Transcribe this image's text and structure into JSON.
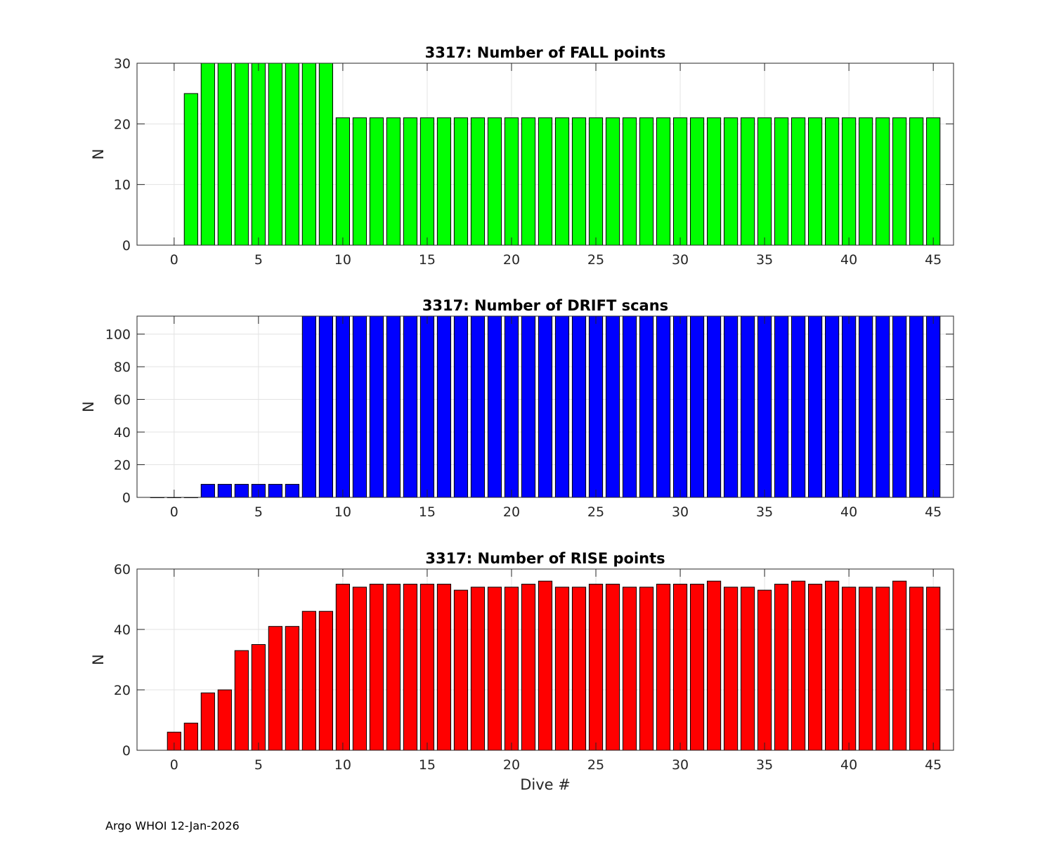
{
  "footer": "Argo WHOI 12-Jan-2026",
  "chart_data": [
    {
      "type": "bar",
      "title": "3317: Number of FALL points",
      "xlabel": "",
      "ylabel": "N",
      "xlim": [
        -2.2,
        46.2
      ],
      "ylim": [
        0,
        30
      ],
      "xticks": [
        0,
        5,
        10,
        15,
        20,
        25,
        30,
        35,
        40,
        45
      ],
      "yticks": [
        0,
        10,
        20,
        30
      ],
      "grid": true,
      "color": "#00ff00",
      "x": [
        1,
        2,
        3,
        4,
        5,
        6,
        7,
        8,
        9,
        10,
        11,
        12,
        13,
        14,
        15,
        16,
        17,
        18,
        19,
        20,
        21,
        22,
        23,
        24,
        25,
        26,
        27,
        28,
        29,
        30,
        31,
        32,
        33,
        34,
        35,
        36,
        37,
        38,
        39,
        40,
        41,
        42,
        43,
        44,
        45
      ],
      "values": [
        25,
        30,
        30,
        30,
        30,
        30,
        30,
        30,
        30,
        21,
        21,
        21,
        21,
        21,
        21,
        21,
        21,
        21,
        21,
        21,
        21,
        21,
        21,
        21,
        21,
        21,
        21,
        21,
        21,
        21,
        21,
        21,
        21,
        21,
        21,
        21,
        21,
        21,
        21,
        21,
        21,
        21,
        21,
        21,
        21
      ]
    },
    {
      "type": "bar",
      "title": "3317: Number of DRIFT scans",
      "xlabel": "",
      "ylabel": "N",
      "xlim": [
        -2.2,
        46.2
      ],
      "ylim": [
        0,
        111
      ],
      "xticks": [
        0,
        5,
        10,
        15,
        20,
        25,
        30,
        35,
        40,
        45
      ],
      "yticks": [
        0,
        20,
        40,
        60,
        80,
        100
      ],
      "grid": true,
      "color": "#0000ff",
      "x": [
        -1,
        0,
        1,
        2,
        3,
        4,
        5,
        6,
        7,
        8,
        9,
        10,
        11,
        12,
        13,
        14,
        15,
        16,
        17,
        18,
        19,
        20,
        21,
        22,
        23,
        24,
        25,
        26,
        27,
        28,
        29,
        30,
        31,
        32,
        33,
        34,
        35,
        36,
        37,
        38,
        39,
        40,
        41,
        42,
        43,
        44,
        45
      ],
      "values": [
        0,
        0,
        0,
        8,
        8,
        8,
        8,
        8,
        8,
        111,
        111,
        111,
        111,
        111,
        111,
        111,
        111,
        111,
        111,
        111,
        111,
        111,
        111,
        111,
        111,
        111,
        111,
        111,
        111,
        111,
        111,
        111,
        111,
        111,
        111,
        111,
        111,
        111,
        111,
        111,
        111,
        111,
        111,
        111,
        111,
        111,
        111
      ]
    },
    {
      "type": "bar",
      "title": "3317: Number of RISE points",
      "xlabel": "Dive #",
      "ylabel": "N",
      "xlim": [
        -2.2,
        46.2
      ],
      "ylim": [
        0,
        60
      ],
      "xticks": [
        0,
        5,
        10,
        15,
        20,
        25,
        30,
        35,
        40,
        45
      ],
      "yticks": [
        0,
        20,
        40,
        60
      ],
      "grid": true,
      "color": "#ff0000",
      "x": [
        0,
        1,
        2,
        3,
        4,
        5,
        6,
        7,
        8,
        9,
        10,
        11,
        12,
        13,
        14,
        15,
        16,
        17,
        18,
        19,
        20,
        21,
        22,
        23,
        24,
        25,
        26,
        27,
        28,
        29,
        30,
        31,
        32,
        33,
        34,
        35,
        36,
        37,
        38,
        39,
        40,
        41,
        42,
        43,
        44,
        45
      ],
      "values": [
        6,
        9,
        19,
        20,
        33,
        35,
        41,
        41,
        46,
        46,
        55,
        54,
        55,
        55,
        55,
        55,
        55,
        53,
        54,
        54,
        54,
        55,
        56,
        54,
        54,
        55,
        55,
        54,
        54,
        55,
        55,
        55,
        56,
        54,
        54,
        53,
        55,
        56,
        55,
        56,
        54,
        54,
        54,
        56,
        54,
        54
      ]
    }
  ]
}
